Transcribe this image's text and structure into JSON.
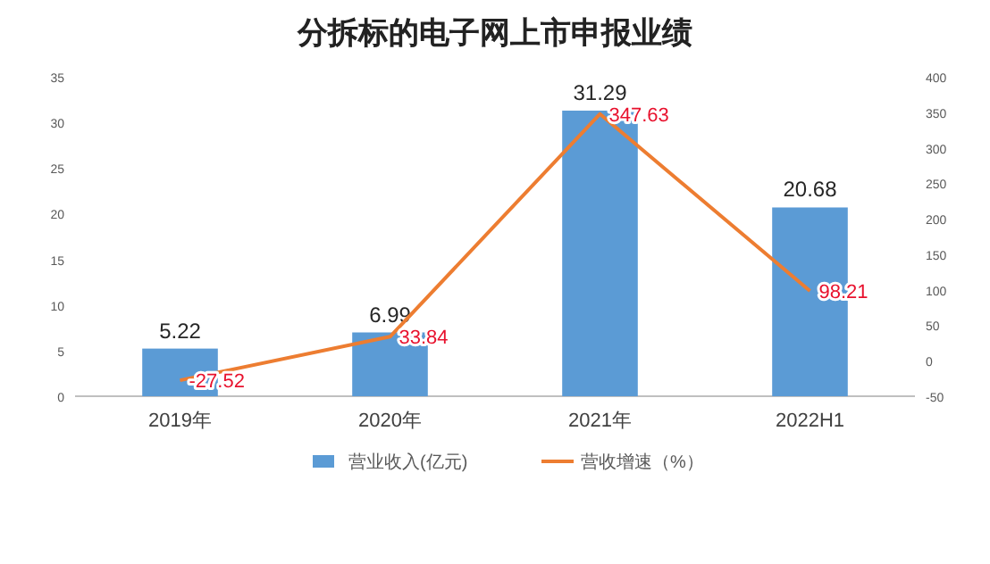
{
  "chart_data": {
    "type": "bar",
    "title": "分拆标的电子网上市申报业绩",
    "categories": [
      "2019年",
      "2020年",
      "2021年",
      "2022H1"
    ],
    "series": [
      {
        "name": "营业收入(亿元)",
        "color": "#5b9bd5",
        "values": [
          5.22,
          6.99,
          31.29,
          20.68
        ]
      },
      {
        "name": "营收增速（%）",
        "type": "line",
        "axis": "y2",
        "color": "#ed7d31",
        "values": [
          -27.52,
          33.84,
          347.63,
          98.21
        ]
      }
    ],
    "ylim": [
      0,
      35
    ],
    "yticks": [
      0,
      5,
      10,
      15,
      20,
      25,
      30,
      35
    ],
    "y2lim": [
      -50,
      400
    ],
    "y2ticks": [
      -50,
      0,
      50,
      100,
      150,
      200,
      250,
      300,
      350,
      400
    ],
    "data_labels": true,
    "legend": "bottom",
    "grid": false
  }
}
